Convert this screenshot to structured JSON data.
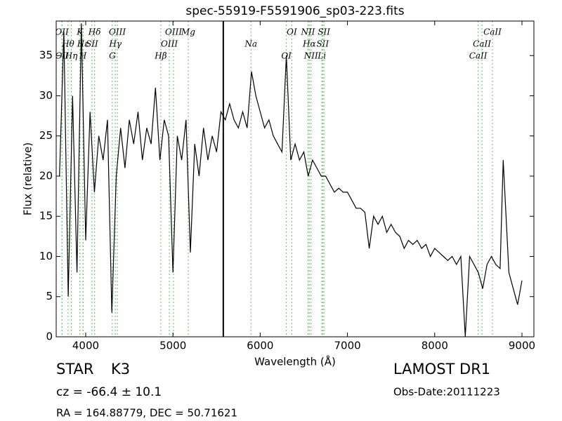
{
  "chart_data": {
    "type": "line",
    "title": "spec-55919-F5591906_sp03-223.fits",
    "xlabel": "Wavelength (Å)",
    "ylabel": "Flux (relative)",
    "xlim": [
      3662,
      9137
    ],
    "ylim": [
      0,
      39.3
    ],
    "xticks": [
      4000,
      5000,
      6000,
      7000,
      8000,
      9000
    ],
    "yticks": [
      0,
      5,
      10,
      15,
      20,
      25,
      30,
      35
    ],
    "color": "#000000",
    "x": [
      3700,
      3750,
      3800,
      3850,
      3900,
      3950,
      4000,
      4050,
      4100,
      4150,
      4200,
      4250,
      4300,
      4350,
      4400,
      4450,
      4500,
      4550,
      4600,
      4650,
      4700,
      4750,
      4800,
      4850,
      4900,
      4950,
      5000,
      5050,
      5100,
      5150,
      5200,
      5250,
      5300,
      5350,
      5400,
      5450,
      5500,
      5550,
      5600,
      5650,
      5700,
      5750,
      5800,
      5850,
      5900,
      5950,
      6000,
      6050,
      6100,
      6150,
      6200,
      6250,
      6300,
      6350,
      6400,
      6450,
      6500,
      6550,
      6600,
      6650,
      6700,
      6750,
      6800,
      6850,
      6900,
      6950,
      7000,
      7050,
      7100,
      7150,
      7200,
      7250,
      7300,
      7350,
      7400,
      7450,
      7500,
      7550,
      7600,
      7650,
      7700,
      7750,
      7800,
      7850,
      7900,
      7950,
      8000,
      8050,
      8100,
      8150,
      8200,
      8250,
      8300,
      8350,
      8400,
      8450,
      8500,
      8550,
      8600,
      8650,
      8700,
      8750,
      8785,
      8850,
      8900,
      8950,
      9000
    ],
    "values": [
      20,
      38,
      5,
      30,
      8,
      39,
      12,
      28,
      18,
      25,
      22,
      27,
      3,
      20,
      26,
      21,
      27,
      24,
      28,
      22,
      26,
      24,
      31,
      22,
      27,
      25,
      8,
      25,
      22,
      27,
      10.5,
      24,
      20,
      26,
      22,
      25,
      23,
      28,
      27,
      29,
      27,
      26,
      28,
      26,
      33,
      30,
      28,
      26,
      27,
      25,
      24,
      23,
      35,
      22,
      24,
      22,
      23,
      20,
      22,
      21,
      20,
      20,
      19,
      18,
      18.5,
      18,
      18,
      17,
      16,
      16,
      15.5,
      11,
      15,
      14,
      15,
      13,
      14,
      13,
      12.5,
      11,
      12,
      11.5,
      12,
      11,
      11.5,
      10,
      11,
      10.5,
      10,
      9.5,
      10,
      9,
      10,
      0,
      10,
      9,
      8,
      6,
      9,
      10,
      9,
      8.5,
      22,
      8,
      6,
      4,
      7
    ],
    "sky_line": 5577,
    "sky_color": "#000000",
    "line_color": "#66bb66",
    "lines": [
      {
        "label": "OII",
        "wavelength": 3727
      },
      {
        "label": "Hθ",
        "wavelength": 3798
      },
      {
        "label": "OII",
        "wavelength": 3729
      },
      {
        "label": "K",
        "wavelength": 3934
      },
      {
        "label": "Hε",
        "wavelength": 3970
      },
      {
        "label": "Hη",
        "wavelength": 3835
      },
      {
        "label": "Hδ",
        "wavelength": 4102
      },
      {
        "label": "SII",
        "wavelength": 4072
      },
      {
        "label": "H",
        "wavelength": 3969
      },
      {
        "label": "OIII",
        "wavelength": 4363
      },
      {
        "label": "Hγ",
        "wavelength": 4340
      },
      {
        "label": "G",
        "wavelength": 4305
      },
      {
        "label": "OIII",
        "wavelength": 5007
      },
      {
        "label": "OIII",
        "wavelength": 4959
      },
      {
        "label": "Hβ",
        "wavelength": 4861
      },
      {
        "label": "Mg",
        "wavelength": 5175
      },
      {
        "label": "Na",
        "wavelength": 5894
      },
      {
        "label": "OI",
        "wavelength": 6300
      },
      {
        "label": "OI",
        "wavelength": 6363
      },
      {
        "label": "Hα",
        "wavelength": 6563
      },
      {
        "label": "NII",
        "wavelength": 6583
      },
      {
        "label": "NII",
        "wavelength": 6548
      },
      {
        "label": "SII",
        "wavelength": 6716
      },
      {
        "label": "Li",
        "wavelength": 6707
      },
      {
        "label": "SII",
        "wavelength": 6731
      },
      {
        "label": "CaII",
        "wavelength": 8542
      },
      {
        "label": "CaII",
        "wavelength": 8498
      },
      {
        "label": "CaII",
        "wavelength": 8662
      }
    ]
  },
  "info": {
    "class": "STAR",
    "subclass": "K3",
    "cz": "cz = -66.4 ± 10.1",
    "coords": "RA = 164.88779, DEC = 50.71621",
    "survey": "LAMOST DR1",
    "date": "Obs-Date:20111223"
  }
}
